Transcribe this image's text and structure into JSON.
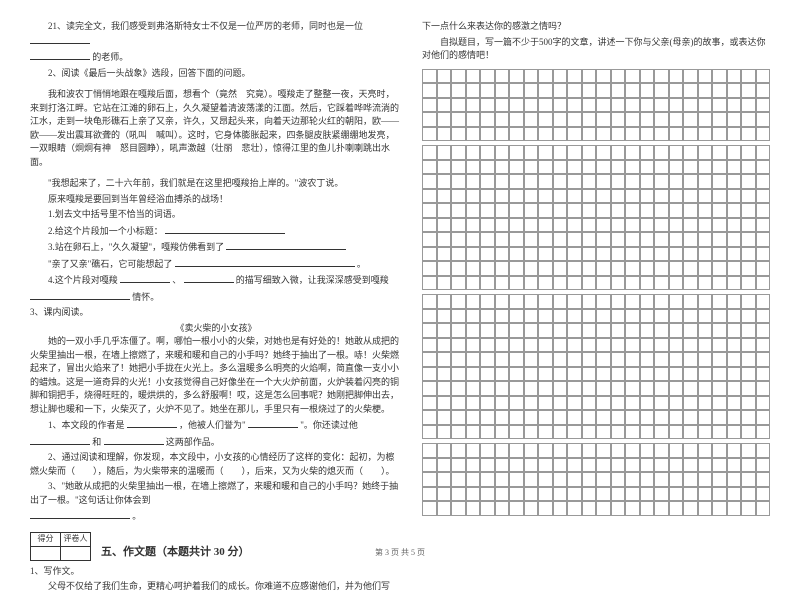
{
  "left": {
    "q21": "21、读完全文，我们感受到弗洛斯特女士不仅是一位严厉的老师，同时也是一位",
    "q21_tail": "的老师。",
    "q2_intro": "2、阅读《最后一头战象》选段，回答下面的问题。",
    "passage1_p1": "我和波农丁悄悄地跟在嘎羧后面，想看个（竟然　究竟）。嘎羧走了整整一夜，天亮时，来到打洛江畔。它站在江滩的卵石上，久久凝望着清波荡漾的江面。然后，它踩着哗哗流淌的江水，走到一块龟形礁石上亲了又亲，许久，又昂起头来，向着天边那轮火红的朝阳，欧——欧——发出震耳欲聋的（吼叫　喊叫）。这时，它身体膨胀起来，四条腿皮肤紧绷绷地发亮，一双眼睛（炯炯有神　怒目圆睁），吼声激越（壮丽　悲壮），惊得江里的鱼儿扑喇喇跳出水面。",
    "passage1_quote": "\"我想起来了，二十六年前，我们就是在这里把嘎羧抬上岸的。\"波农丁说。",
    "passage1_p2": "原来嘎羧是要回到当年曾经浴血搏杀的战场！",
    "sub1": "1.划去文中括号里不恰当的词语。",
    "sub2": "2.给这个片段加一个小标题：",
    "sub3a": "3.站在卵石上，\"久久凝望\"，嘎羧仿佛看到了",
    "sub3b": "\"亲了又亲\"礁石，它可能想起了",
    "sub3c_tail": "。",
    "sub4a": "4.这个片段对嘎羧",
    "sub4b": "、",
    "sub4c": "的描写细致入微，让我深深感受到嘎羧",
    "sub4d": "情怀。",
    "q3_intro": "3、课内阅读。",
    "title2": "《卖火柴的小女孩》",
    "passage2_p1": "她的一双小手几乎冻僵了。啊，哪怕一根小小的火柴，对她也是有好处的！她敢从成把的火柴里抽出一根，在墙上擦燃了，来暖和暖和自己的小手吗？她终于抽出了一根。哧！火柴燃起来了，冒出火焰来了！她把小手拢在火光上。多么温暖多么明亮的火焰啊，简直像一支小小的蜡烛。这是一道奇异的火光！小女孩觉得自己好像坐在一个大火炉前面，火炉装着闪亮的铜脚和铜把手，烧得旺旺的，暖烘烘的，多么舒服啊！哎，这是怎么回事呢？她刚把脚伸出去，想让脚也暖和一下，火柴灭了，火炉不见了。她坐在那儿，手里只有一根烧过了的火柴梗。",
    "r1a": "1、本文段的作者是",
    "r1b": "，他被人们誉为\"",
    "r1c": "\"。你还读过他",
    "r1d": "和",
    "r1e": "这两部作品。",
    "r2": "2、通过阅读和理解，你发现，本文段中，小女孩的心情经历了这样的变化：起初，为檫燃火柴而（　　），随后，为火柴带来的温暖而（　　），后来，又为火柴的熄灭而（　　）。",
    "r3a": "3、\"她敢从成把的火柴里抽出一根，在墙上擦燃了，来暖和暖和自己的小手吗？她终于抽出了一根。\"这句话让你体会到",
    "r3b": "。",
    "score_label1": "得分",
    "score_label2": "评卷人",
    "section5": "五、作文题（本题共计 30 分）",
    "w1": "1、写作文。",
    "w1_body": "父母不仅给了我们生命，更精心呵护着我们的成长。你难道不应感谢他们，并为他们写"
  },
  "right": {
    "line1": "下一点什么来表达你的感激之情吗？",
    "line2": "自拟题目，写一篇不少于500字的文章，讲述一下你与父亲(母亲)的故事，或表达你对他们的感情吧！"
  },
  "footer": "第 3 页 共 5 页",
  "grid": {
    "cols": 24,
    "blocks": [
      5,
      10,
      10,
      5
    ]
  },
  "style": {
    "bg": "#ffffff",
    "text": "#333333",
    "grid_border": "#999999"
  }
}
